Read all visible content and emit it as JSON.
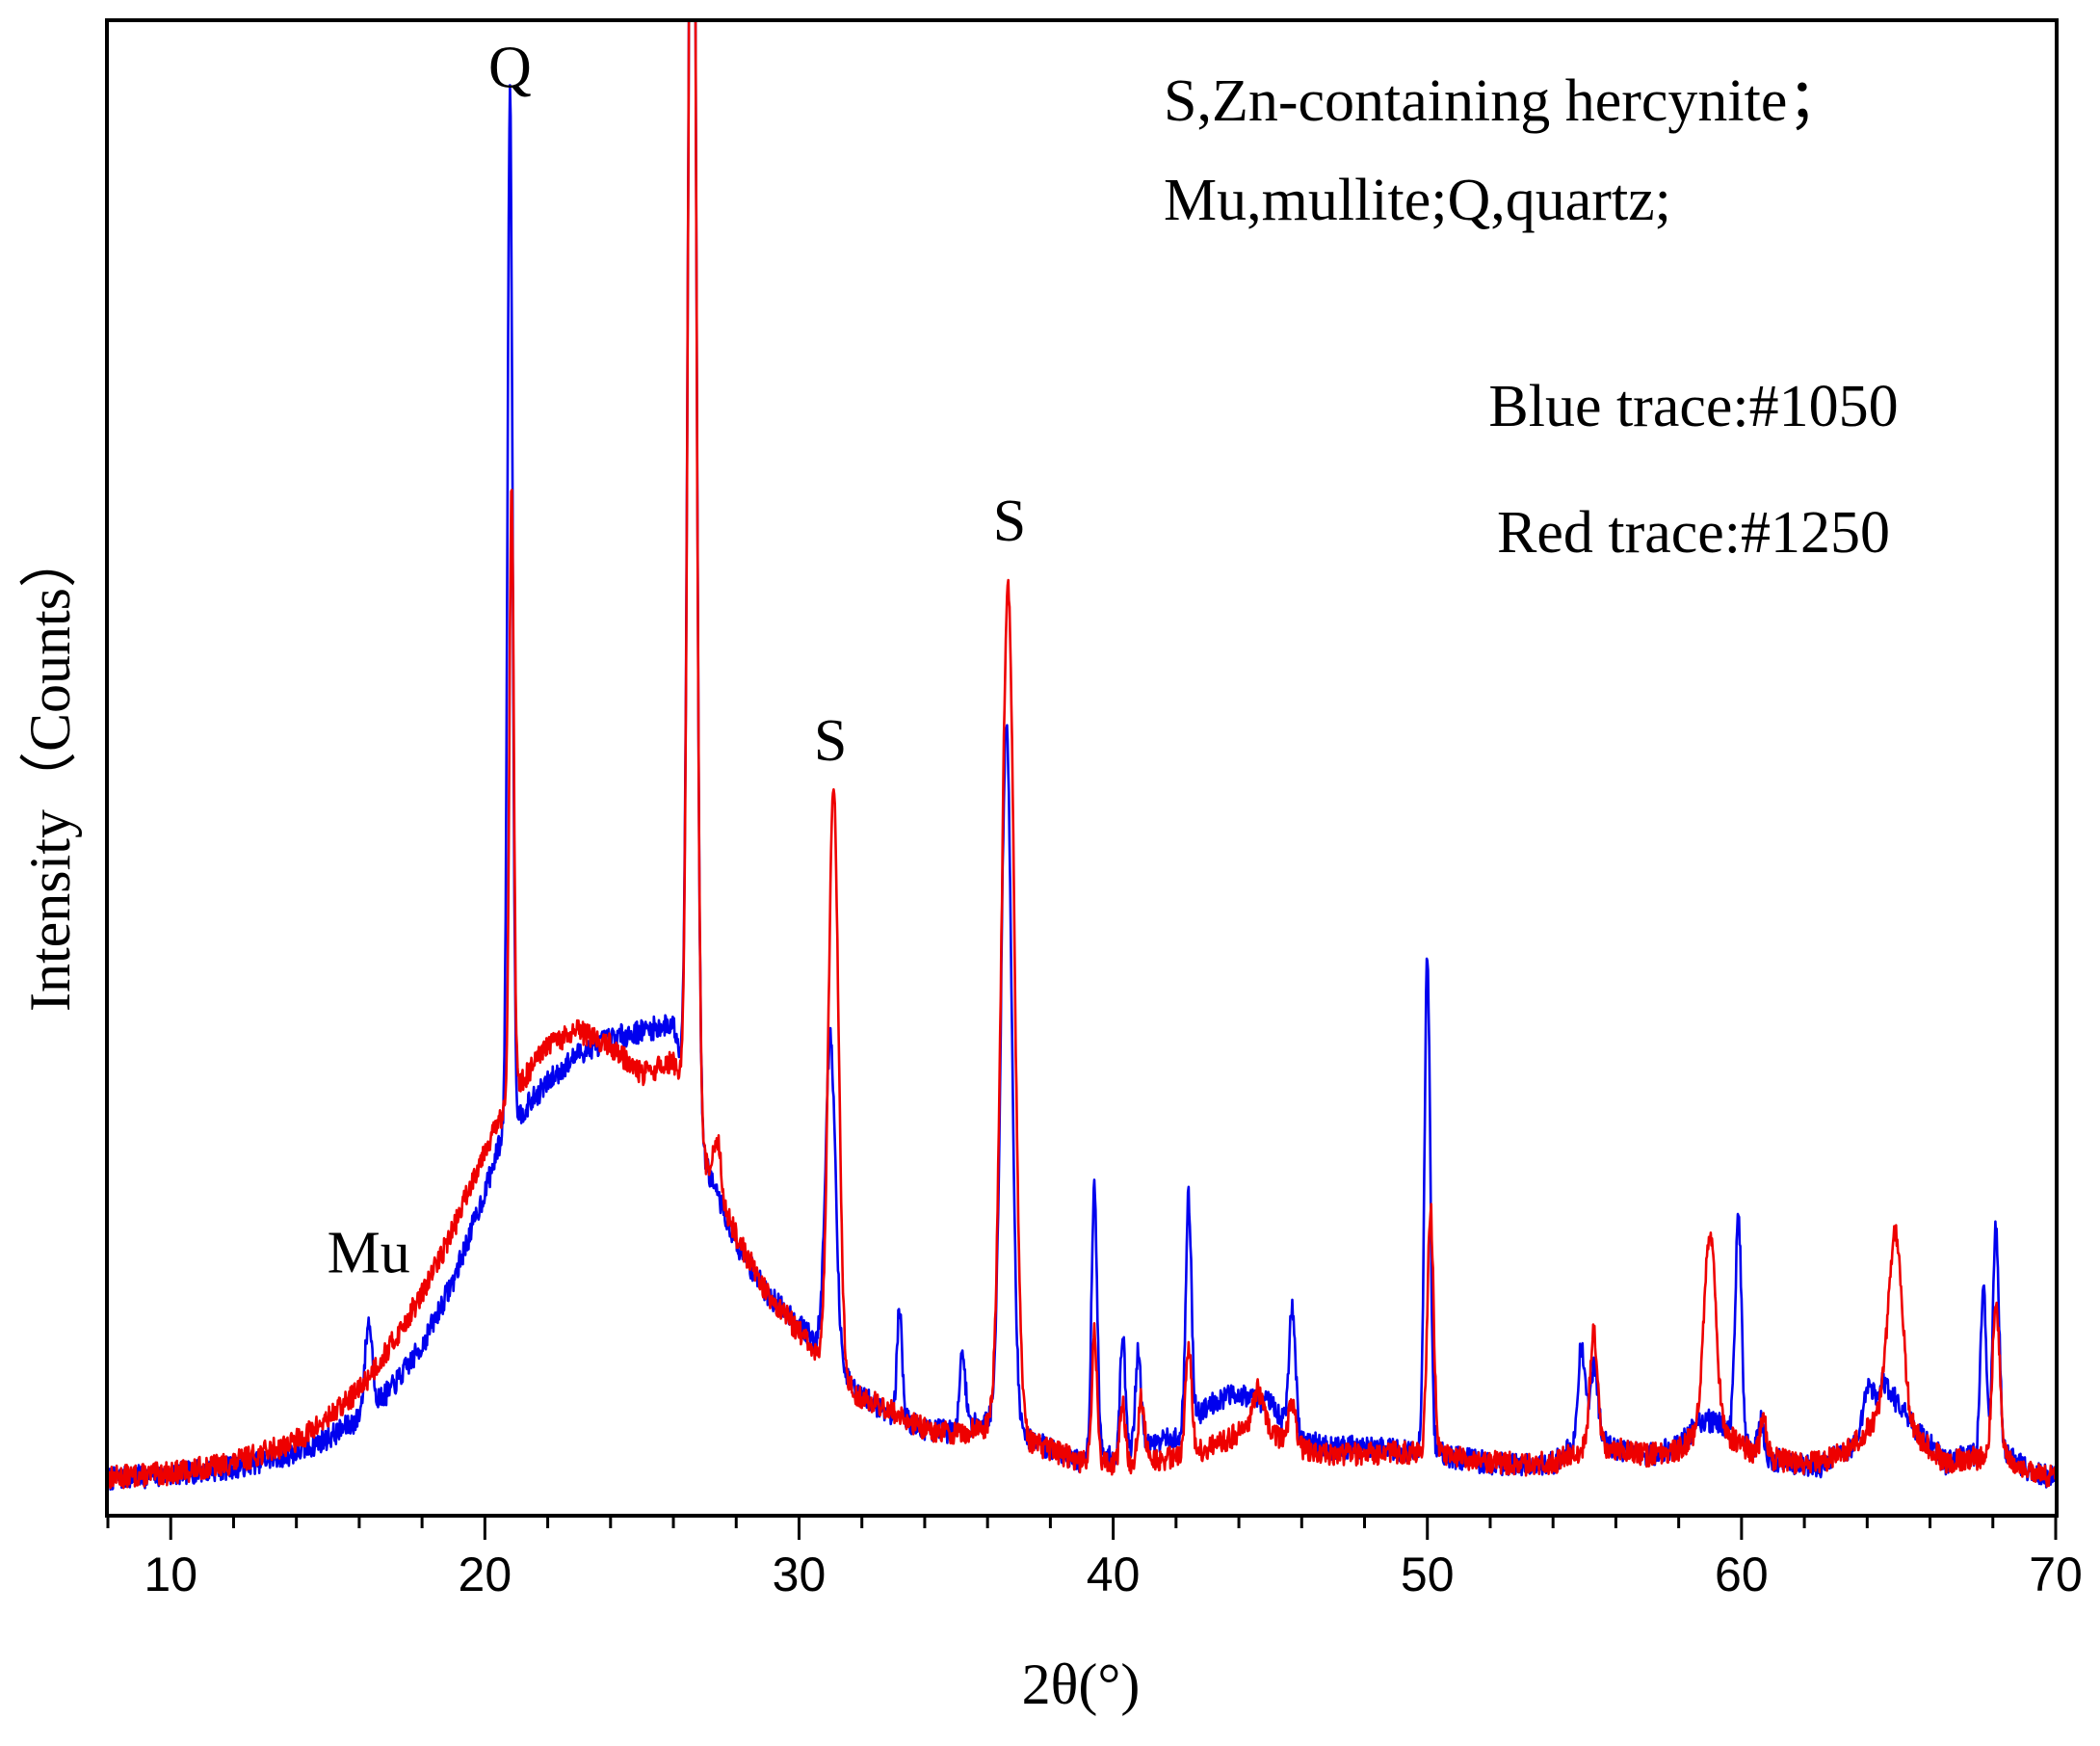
{
  "chart_data": {
    "type": "line",
    "xlabel": "2θ(°)",
    "ylabel": "Intensity（Counts）",
    "xlim": [
      8,
      70
    ],
    "xticks": [
      10,
      20,
      30,
      40,
      50,
      60,
      70
    ],
    "xtick_labels": [
      "10",
      "20",
      "30",
      "40",
      "50",
      "60",
      "70"
    ],
    "ylim": [
      0,
      100
    ],
    "yticks_labeled": false,
    "grid": false,
    "legend_text": {
      "line1": "S,Zn-containing hercynite；",
      "line2": "Mu,mullite;Q,quartz;",
      "line3": "Blue trace:#1050",
      "line4": "Red trace:#1250"
    },
    "peak_labels": [
      {
        "text": "Mu",
        "x": 16.3,
        "y": 14.5
      },
      {
        "text": "Q",
        "x": 20.8,
        "y": 95.5
      },
      {
        "text": "S",
        "x": 31.0,
        "y": 49.5
      },
      {
        "text": "S",
        "x": 36.7,
        "y": 64.5
      }
    ],
    "colors": {
      "blue": "#0000ee",
      "red": "#ee0000"
    },
    "series": [
      {
        "color": "#0000ee",
        "baseline": [
          [
            8,
            0.4
          ],
          [
            10,
            0.7
          ],
          [
            12,
            1.2
          ],
          [
            14,
            2.2
          ],
          [
            15,
            3.2
          ],
          [
            16,
            4.5
          ],
          [
            17,
            6.5
          ],
          [
            18,
            9.5
          ],
          [
            19,
            14
          ],
          [
            20,
            20
          ],
          [
            20.5,
            23.5
          ],
          [
            21,
            25
          ],
          [
            22,
            27.5
          ],
          [
            23,
            29.5
          ],
          [
            24,
            30.5
          ],
          [
            25,
            31
          ],
          [
            26,
            31.5
          ],
          [
            27,
            22
          ],
          [
            28,
            16.5
          ],
          [
            29,
            13
          ],
          [
            30,
            11
          ],
          [
            31,
            8.5
          ],
          [
            32,
            6
          ],
          [
            33,
            4.8
          ],
          [
            34,
            3.8
          ],
          [
            35,
            3.6
          ],
          [
            36,
            4.5
          ],
          [
            37.5,
            3
          ],
          [
            39,
            1.5
          ],
          [
            40,
            2
          ],
          [
            41,
            2.7
          ],
          [
            42,
            3.2
          ],
          [
            43,
            5.5
          ],
          [
            44,
            6.3
          ],
          [
            45,
            5.5
          ],
          [
            46,
            3
          ],
          [
            47,
            2.5
          ],
          [
            48,
            2.6
          ],
          [
            49,
            2.4
          ],
          [
            50,
            2.4
          ],
          [
            51,
            1.8
          ],
          [
            52,
            1.5
          ],
          [
            53,
            1.4
          ],
          [
            54,
            1.5
          ],
          [
            55,
            3.3
          ],
          [
            56,
            2.5
          ],
          [
            57,
            2
          ],
          [
            58,
            2.7
          ],
          [
            58.8,
            4.5
          ],
          [
            59.5,
            4
          ],
          [
            60.5,
            2
          ],
          [
            61.5,
            1.5
          ],
          [
            62.5,
            1.3
          ],
          [
            63.5,
            2.5
          ],
          [
            64.5,
            7
          ],
          [
            65.5,
            4
          ],
          [
            66.5,
            1.5
          ],
          [
            67.2,
            2
          ],
          [
            68.5,
            2
          ],
          [
            69.2,
            0.8
          ],
          [
            70,
            0.5
          ]
        ],
        "peaks": [
          {
            "x": 16.3,
            "height": 6,
            "width": 0.12
          },
          {
            "x": 20.8,
            "height": 71,
            "width": 0.08
          },
          {
            "x": 26.6,
            "height": 110,
            "width": 0.12
          },
          {
            "x": 31.0,
            "height": 22,
            "width": 0.16
          },
          {
            "x": 33.2,
            "height": 7.5,
            "width": 0.08
          },
          {
            "x": 35.2,
            "height": 5,
            "width": 0.1
          },
          {
            "x": 36.6,
            "height": 48,
            "width": 0.17
          },
          {
            "x": 39.4,
            "height": 18.5,
            "width": 0.09
          },
          {
            "x": 40.3,
            "height": 8,
            "width": 0.08
          },
          {
            "x": 40.8,
            "height": 6.5,
            "width": 0.09
          },
          {
            "x": 42.4,
            "height": 15.5,
            "width": 0.09
          },
          {
            "x": 45.7,
            "height": 8.5,
            "width": 0.1
          },
          {
            "x": 50.0,
            "height": 34,
            "width": 0.09
          },
          {
            "x": 54.9,
            "height": 6.5,
            "width": 0.1
          },
          {
            "x": 55.3,
            "height": 5,
            "width": 0.13
          },
          {
            "x": 59.9,
            "height": 15,
            "width": 0.1
          },
          {
            "x": 60.6,
            "height": 2.5,
            "width": 0.1
          },
          {
            "x": 64.0,
            "height": 2,
            "width": 0.12
          },
          {
            "x": 67.7,
            "height": 11.5,
            "width": 0.09
          },
          {
            "x": 68.1,
            "height": 15.5,
            "width": 0.1
          }
        ],
        "noise": 0.8,
        "seed": 7
      },
      {
        "color": "#ee0000",
        "baseline": [
          [
            8,
            0.5
          ],
          [
            10,
            0.8
          ],
          [
            12,
            1.5
          ],
          [
            14,
            3
          ],
          [
            15,
            4.5
          ],
          [
            16,
            6.5
          ],
          [
            17,
            9.5
          ],
          [
            18,
            13
          ],
          [
            19,
            17.5
          ],
          [
            20,
            23
          ],
          [
            20.5,
            25
          ],
          [
            21,
            27
          ],
          [
            22,
            30
          ],
          [
            23,
            31
          ],
          [
            24,
            30
          ],
          [
            25,
            28
          ],
          [
            26,
            29
          ],
          [
            27,
            22
          ],
          [
            28,
            17
          ],
          [
            29,
            13
          ],
          [
            30,
            10.5
          ],
          [
            31,
            7.5
          ],
          [
            32,
            6
          ],
          [
            33,
            5
          ],
          [
            34,
            3.8
          ],
          [
            35,
            3.5
          ],
          [
            36,
            4
          ],
          [
            37.5,
            2.8
          ],
          [
            39,
            1.6
          ],
          [
            40,
            1.5
          ],
          [
            41,
            1.5
          ],
          [
            42,
            2
          ],
          [
            43,
            2.5
          ],
          [
            44,
            3.5
          ],
          [
            45,
            3.5
          ],
          [
            46,
            2.5
          ],
          [
            47,
            2
          ],
          [
            48,
            2.1
          ],
          [
            49,
            2.2
          ],
          [
            50,
            2.3
          ],
          [
            51,
            1.8
          ],
          [
            52,
            1.6
          ],
          [
            53,
            1.4
          ],
          [
            54,
            1.5
          ],
          [
            55,
            2.5
          ],
          [
            56,
            2.5
          ],
          [
            57,
            2
          ],
          [
            58,
            2.4
          ],
          [
            58.8,
            4
          ],
          [
            59.5,
            3.5
          ],
          [
            60.5,
            2
          ],
          [
            61.5,
            1.6
          ],
          [
            62.5,
            1.5
          ],
          [
            63.5,
            2.6
          ],
          [
            64.5,
            5
          ],
          [
            65.5,
            3.5
          ],
          [
            66.5,
            1.5
          ],
          [
            67.2,
            1.8
          ],
          [
            68.5,
            1.8
          ],
          [
            69.2,
            0.8
          ],
          [
            70,
            0.5
          ]
        ],
        "peaks": [
          {
            "x": 20.85,
            "height": 42,
            "width": 0.07
          },
          {
            "x": 26.6,
            "height": 110,
            "width": 0.12
          },
          {
            "x": 27.4,
            "height": 3.5,
            "width": 0.12
          },
          {
            "x": 31.1,
            "height": 40,
            "width": 0.16
          },
          {
            "x": 36.65,
            "height": 58,
            "width": 0.2
          },
          {
            "x": 39.4,
            "height": 9,
            "width": 0.08
          },
          {
            "x": 40.3,
            "height": 4,
            "width": 0.08
          },
          {
            "x": 40.9,
            "height": 4.5,
            "width": 0.1
          },
          {
            "x": 42.4,
            "height": 7,
            "width": 0.1
          },
          {
            "x": 44.6,
            "height": 3,
            "width": 0.18
          },
          {
            "x": 45.7,
            "height": 3,
            "width": 0.1
          },
          {
            "x": 50.1,
            "height": 16.5,
            "width": 0.1
          },
          {
            "x": 55.3,
            "height": 8,
            "width": 0.12
          },
          {
            "x": 59.0,
            "height": 13.5,
            "width": 0.18
          },
          {
            "x": 60.7,
            "height": 2.5,
            "width": 0.1
          },
          {
            "x": 64.9,
            "height": 13,
            "width": 0.22
          },
          {
            "x": 68.1,
            "height": 10.5,
            "width": 0.12
          }
        ],
        "noise": 0.8,
        "seed": 13
      }
    ]
  }
}
